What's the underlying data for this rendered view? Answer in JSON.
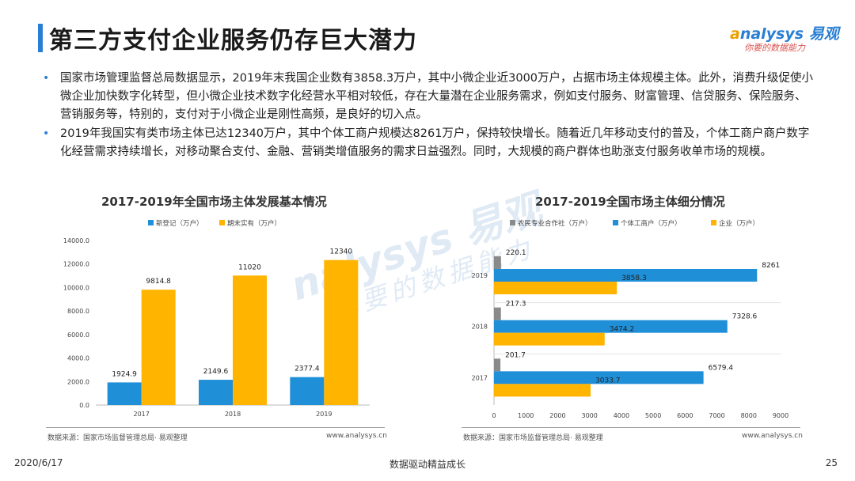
{
  "header": {
    "title": "第三方支付企业服务仍存巨大潜力",
    "logo_text": "nalysys",
    "logo_letter": "a",
    "logo_cn": "易观",
    "slogan": "你要的数据能力"
  },
  "bullets": [
    "国家市场管理监督总局数据显示，2019年末我国企业数有3858.3万户，其中小微企业近3000万户，占据市场主体规模主体。此外，消费升级促使小微企业加快数字化转型，但小微企业技术数字化经营水平相对较低，存在大量潜在企业服务需求，例如支付服务、财富管理、信贷服务、保险服务、营销服务等，特别的，支付对于小微企业是刚性高频，是良好的切入点。",
    "2019年我国实有类市场主体已达12340万户，其中个体工商户规模达8261万户，保持较快增长。随着近几年移动支付的普及，个体工商户商户数字化经营需求持续增长，对移动聚合支付、金融、营销类增值服务的需求日益强烈。同时，大规模的商户群体也助涨支付服务收单市场的规模。"
  ],
  "watermark": {
    "line1": "nalysys 易观",
    "line2": "你要的数据能力"
  },
  "chart_data": [
    {
      "type": "bar",
      "title": "2017-2019年全国市场主体发展基本情况",
      "categories": [
        "2017",
        "2018",
        "2019"
      ],
      "series": [
        {
          "name": "新登记（万户）",
          "color": "#1f8fd8",
          "values": [
            1924.9,
            2149.6,
            2377.4
          ],
          "labels": [
            "1924.9",
            "2149.6",
            "2377.4"
          ]
        },
        {
          "name": "期末实有（万户）",
          "color": "#ffb400",
          "values": [
            9814.8,
            11020,
            12340
          ],
          "labels": [
            "9814.8",
            "11020",
            "12340"
          ]
        }
      ],
      "ylim": [
        0,
        14000
      ],
      "yticks": [
        0,
        2000,
        4000,
        6000,
        8000,
        10000,
        12000,
        14000
      ],
      "ytick_labels": [
        "0.0",
        "2000.0",
        "4000.0",
        "6000.0",
        "8000.0",
        "10000.0",
        "12000.0",
        "14000.0"
      ],
      "legend": "top"
    },
    {
      "type": "bar-horizontal",
      "title": "2017-2019全国市场主体细分情况",
      "categories": [
        "2019",
        "2018",
        "2017"
      ],
      "series": [
        {
          "name": "农民专业合作社（万户）",
          "color": "#8a8a8a",
          "values": [
            220.1,
            217.3,
            201.7
          ],
          "labels": [
            "220.1",
            "217.3",
            "201.7"
          ]
        },
        {
          "name": "个体工商户（万户）",
          "color": "#1f8fd8",
          "values": [
            8261,
            7328.6,
            6579.4
          ],
          "labels": [
            "8261",
            "7328.6",
            "6579.4"
          ]
        },
        {
          "name": "企业（万户）",
          "color": "#ffb400",
          "values": [
            3858.3,
            3474.2,
            3033.7
          ],
          "labels": [
            "3858.3",
            "3474.2",
            "3033.7"
          ]
        }
      ],
      "xlim": [
        0,
        9000
      ],
      "xticks": [
        0,
        1000,
        2000,
        3000,
        4000,
        5000,
        6000,
        7000,
        8000,
        9000
      ],
      "xtick_labels": [
        "0",
        "1000",
        "2000",
        "3000",
        "4000",
        "5000",
        "6000",
        "7000",
        "8000",
        "9000"
      ],
      "legend": "top"
    }
  ],
  "sources": {
    "left": "数据来源：国家市场监督管理总局· 易观整理",
    "right": "数据来源：国家市场监督管理总局· 易观整理",
    "site_left": "www.analysys.cn",
    "site_right": "www.analysys.cn"
  },
  "footer": {
    "date": "2020/6/17",
    "center": "数据驱动精益成长",
    "page": "25"
  },
  "colors": {
    "accent": "#2a7fd4",
    "blue": "#1f8fd8",
    "orange": "#ffb400",
    "gray": "#8a8a8a"
  }
}
